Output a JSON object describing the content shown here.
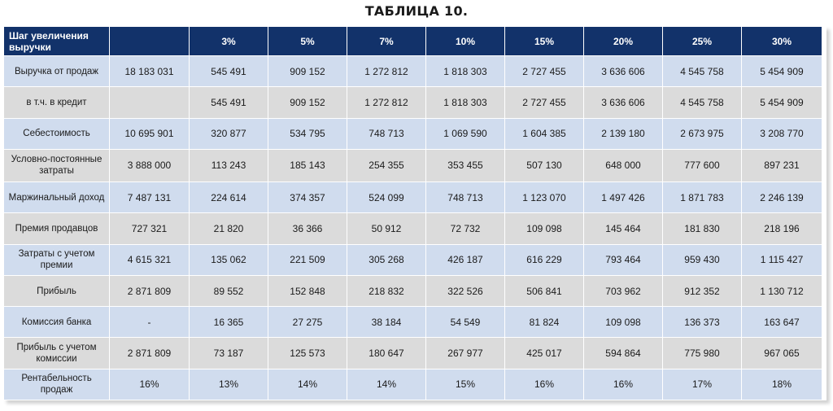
{
  "title": "ТАБЛИЦА 10.",
  "header": [
    "Шаг увеличения выручки",
    "",
    "3%",
    "5%",
    "7%",
    "10%",
    "15%",
    "20%",
    "25%",
    "30%"
  ],
  "rows": [
    {
      "style": "blue",
      "cells": [
        "Выручка от продаж",
        "18 183 031",
        "545 491",
        "909 152",
        "1 272 812",
        "1 818 303",
        "2 727 455",
        "3 636 606",
        "4 545 758",
        "5 454 909"
      ]
    },
    {
      "style": "gray",
      "cells": [
        "в т.ч. в кредит",
        "",
        "545 491",
        "909 152",
        "1 272 812",
        "1 818 303",
        "2 727 455",
        "3 636 606",
        "4 545 758",
        "5 454 909"
      ]
    },
    {
      "style": "blue",
      "cells": [
        "Себестоимость",
        "10 695 901",
        "320 877",
        "534 795",
        "748 713",
        "1 069 590",
        "1 604 385",
        "2 139 180",
        "2 673 975",
        "3 208 770"
      ]
    },
    {
      "style": "gray",
      "cells": [
        "Условно-постоянные затраты",
        "3 888 000",
        "113 243",
        "185 143",
        "254 355",
        "353 455",
        "507 130",
        "648 000",
        "777 600",
        "897 231"
      ]
    },
    {
      "style": "blue",
      "cells": [
        "Маржинальный доход",
        "7 487 131",
        "224 614",
        "374 357",
        "524 099",
        "748 713",
        "1 123 070",
        "1 497 426",
        "1 871 783",
        "2 246 139"
      ]
    },
    {
      "style": "gray",
      "cells": [
        "Премия продавцов",
        "727 321",
        "21 820",
        "36 366",
        "50 912",
        "72 732",
        "109 098",
        "145 464",
        "181 830",
        "218 196"
      ]
    },
    {
      "style": "blue",
      "cells": [
        "Затраты с учетом премии",
        "4 615 321",
        "135 062",
        "221 509",
        "305 268",
        "426 187",
        "616 229",
        "793 464",
        "959 430",
        "1 115 427"
      ]
    },
    {
      "style": "gray",
      "cells": [
        "Прибыль",
        "2 871 809",
        "89 552",
        "152 848",
        "218 832",
        "322 526",
        "506 841",
        "703 962",
        "912 352",
        "1 130 712"
      ]
    },
    {
      "style": "blue",
      "cells": [
        "Комиссия банка",
        "-",
        "16 365",
        "27 275",
        "38 184",
        "54 549",
        "81 824",
        "109 098",
        "136 373",
        "163 647"
      ]
    },
    {
      "style": "gray",
      "cells": [
        "Прибыль с учетом комиссии",
        "2 871 809",
        "73 187",
        "125 573",
        "180 647",
        "267 977",
        "425 017",
        "594 864",
        "775 980",
        "967 065"
      ]
    },
    {
      "style": "blue",
      "cells": [
        "Рентабельность продаж",
        "16%",
        "13%",
        "14%",
        "14%",
        "15%",
        "16%",
        "16%",
        "17%",
        "18%"
      ]
    }
  ]
}
